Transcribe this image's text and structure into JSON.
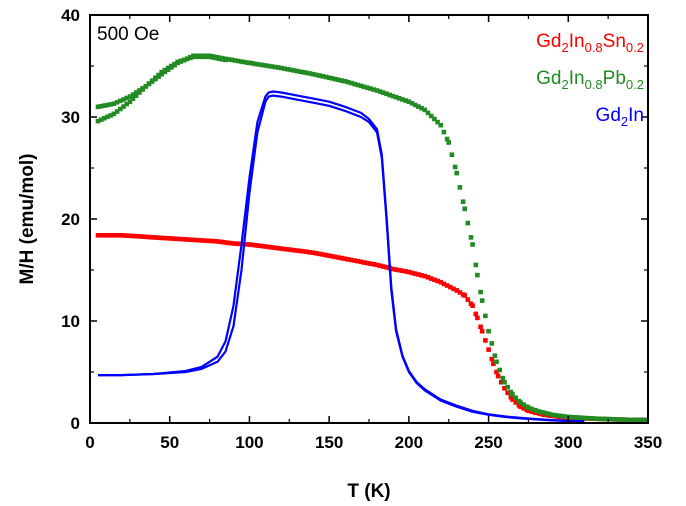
{
  "chart_data": {
    "type": "line",
    "field_label": "500 Oe",
    "xlabel": "T (K)",
    "ylabel": "M/H (emu/mol)",
    "xlim": [
      0,
      350
    ],
    "ylim": [
      0,
      40
    ],
    "xticks": [
      0,
      50,
      100,
      150,
      200,
      250,
      300,
      350
    ],
    "yticks": [
      0,
      10,
      20,
      30,
      40
    ],
    "legend_placement": "top-right",
    "grid": false,
    "series": [
      {
        "name": "Gd2In0.8Sn0.2",
        "legend": {
          "base1": "Gd",
          "sub1": "2",
          "base2": "In",
          "sub2": "0.8",
          "base3": "Sn",
          "sub3": "0.2"
        },
        "color": "#ff0000",
        "marker": "square",
        "branches": [
          {
            "x": [
              5,
              10,
              20,
              30,
              40,
              50,
              60,
              70,
              80,
              90,
              100,
              110,
              120,
              130,
              140,
              150,
              160,
              170,
              180,
              190,
              200,
              210,
              220,
              230,
              235,
              240,
              243,
              246,
              250,
              253,
              256,
              260,
              265,
              270,
              275,
              280,
              285,
              290,
              295,
              300,
              310,
              320,
              330,
              340,
              348
            ],
            "y": [
              18.4,
              18.4,
              18.4,
              18.3,
              18.2,
              18.1,
              18.0,
              17.9,
              17.8,
              17.6,
              17.5,
              17.3,
              17.1,
              16.9,
              16.7,
              16.4,
              16.1,
              15.8,
              15.5,
              15.1,
              14.8,
              14.4,
              13.8,
              13.0,
              12.5,
              11.5,
              10.3,
              9.0,
              7.2,
              5.8,
              4.6,
              3.4,
              2.3,
              1.6,
              1.2,
              1.0,
              0.8,
              0.7,
              0.6,
              0.55,
              0.45,
              0.4,
              0.35,
              0.3,
              0.3
            ]
          }
        ]
      },
      {
        "name": "Gd2In0.8Pb0.2",
        "legend": {
          "base1": "Gd",
          "sub1": "2",
          "base2": "In",
          "sub2": "0.8",
          "base3": "Pb",
          "sub3": "0.2"
        },
        "color": "#228b22",
        "marker": "square",
        "branches": [
          {
            "x": [
              5,
              15,
              25,
              35,
              45,
              55,
              65,
              75,
              85,
              100,
              120,
              140,
              160,
              180,
              200,
              210,
              220,
              225,
              230,
              235,
              240,
              243,
              246,
              250,
              255,
              260,
              265,
              270,
              275,
              280,
              290,
              300,
              310,
              320,
              330,
              340,
              348
            ],
            "y": [
              31.0,
              31.3,
              32.0,
              33.0,
              34.2,
              35.3,
              36.0,
              36.0,
              35.7,
              35.3,
              34.8,
              34.2,
              33.5,
              32.6,
              31.5,
              30.7,
              29.2,
              27.5,
              24.5,
              21.0,
              17.5,
              14.5,
              12.0,
              9.0,
              6.0,
              4.0,
              2.8,
              2.0,
              1.5,
              1.2,
              0.8,
              0.6,
              0.5,
              0.4,
              0.35,
              0.3,
              0.3
            ]
          },
          {
            "x": [
              5,
              15,
              25,
              35,
              45,
              55,
              65,
              75,
              85
            ],
            "y": [
              29.6,
              30.3,
              31.5,
              33.0,
              34.4,
              35.4,
              35.9,
              35.9,
              35.6
            ]
          }
        ]
      },
      {
        "name": "Gd2In",
        "legend": {
          "base1": "Gd",
          "sub1": "2",
          "base2": "In",
          "sub2": "",
          "base3": "",
          "sub3": ""
        },
        "color": "#0000ff",
        "marker": "line",
        "branches": [
          {
            "x": [
              5,
              20,
              40,
              60,
              70,
              80,
              85,
              90,
              95,
              100,
              105,
              110,
              112,
              115,
              120,
              130,
              140,
              150,
              160,
              170,
              175,
              180,
              183,
              186,
              189,
              192,
              196,
              200,
              205,
              210,
              220,
              230,
              240,
              250,
              260,
              270,
              280,
              290,
              300,
              310
            ],
            "y": [
              4.7,
              4.7,
              4.8,
              5.0,
              5.3,
              6.0,
              7.0,
              9.5,
              15.0,
              22.5,
              28.5,
              31.5,
              32.0,
              32.1,
              32.0,
              31.7,
              31.4,
              31.1,
              30.6,
              30.0,
              29.5,
              28.5,
              26.0,
              20.0,
              13.0,
              9.0,
              6.5,
              5.0,
              3.9,
              3.2,
              2.2,
              1.6,
              1.1,
              0.8,
              0.6,
              0.45,
              0.35,
              0.25,
              0.2,
              0.15
            ]
          },
          {
            "x": [
              5,
              20,
              40,
              60,
              70,
              80,
              85,
              90,
              95,
              100,
              105,
              110,
              112,
              115,
              120,
              130,
              140,
              150,
              160,
              170,
              175,
              180,
              183,
              186,
              189,
              192,
              196,
              200,
              205,
              210,
              220,
              230,
              240,
              250,
              260,
              270,
              280,
              290,
              300,
              310
            ],
            "y": [
              4.7,
              4.7,
              4.8,
              5.1,
              5.5,
              6.5,
              8.0,
              11.5,
              17.5,
              24.0,
              29.5,
              32.0,
              32.4,
              32.5,
              32.4,
              32.1,
              31.8,
              31.5,
              31.0,
              30.4,
              29.8,
              28.8,
              26.3,
              20.3,
              13.3,
              9.2,
              6.6,
              5.1,
              4.0,
              3.3,
              2.3,
              1.7,
              1.2,
              0.85,
              0.65,
              0.5,
              0.38,
              0.28,
              0.22,
              0.17
            ]
          }
        ]
      }
    ]
  }
}
